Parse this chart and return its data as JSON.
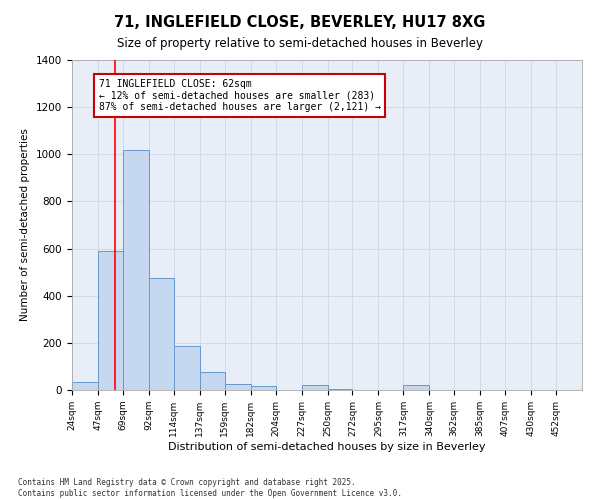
{
  "title": "71, INGLEFIELD CLOSE, BEVERLEY, HU17 8XG",
  "subtitle": "Size of property relative to semi-detached houses in Beverley",
  "xlabel": "Distribution of semi-detached houses by size in Beverley",
  "ylabel": "Number of semi-detached properties",
  "bins": [
    24,
    47,
    69,
    92,
    114,
    137,
    159,
    182,
    204,
    227,
    250,
    272,
    295,
    317,
    340,
    362,
    385,
    407,
    430,
    452,
    475
  ],
  "counts": [
    35,
    590,
    1020,
    475,
    185,
    75,
    25,
    18,
    2,
    20,
    5,
    0,
    0,
    20,
    0,
    0,
    0,
    0,
    0,
    0
  ],
  "bar_color": "#c5d8f0",
  "bar_edge_color": "#6699cc",
  "grid_color": "#d0daea",
  "bg_color": "#e8eef8",
  "red_line_x": 62,
  "annotation_text": "71 INGLEFIELD CLOSE: 62sqm\n← 12% of semi-detached houses are smaller (283)\n87% of semi-detached houses are larger (2,121) →",
  "annotation_box_color": "#ffffff",
  "annotation_box_edge": "#cc0000",
  "ylim": [
    0,
    1400
  ],
  "yticks": [
    0,
    200,
    400,
    600,
    800,
    1000,
    1200,
    1400
  ],
  "footer_line1": "Contains HM Land Registry data © Crown copyright and database right 2025.",
  "footer_line2": "Contains public sector information licensed under the Open Government Licence v3.0."
}
